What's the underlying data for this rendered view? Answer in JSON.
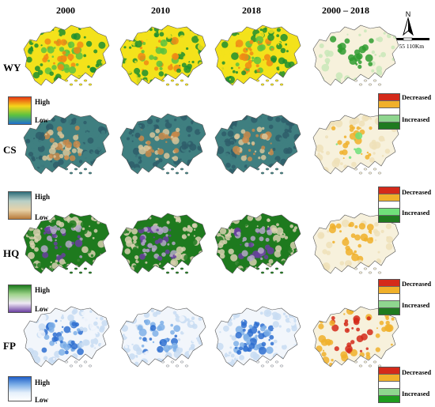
{
  "columns": [
    "2000",
    "2010",
    "2018",
    "2000 – 2018"
  ],
  "rows": [
    "WY",
    "CS",
    "HQ",
    "FP"
  ],
  "legends": {
    "wy": {
      "high": "High",
      "low": "Low"
    },
    "cs": {
      "high": "High",
      "low": "Low"
    },
    "hq": {
      "high": "High",
      "low": "Low"
    },
    "fp": {
      "high": "High",
      "low": "Low"
    }
  },
  "change_legend": {
    "decreased": "Decreased",
    "increased": "Increased"
  },
  "north_label": "N",
  "scale_labels": "0  55 110Km",
  "colors": {
    "wy": [
      "#f3e21b",
      "#f08a15",
      "#5cc23f",
      "#1f8f2f"
    ],
    "cs": [
      "#3f7f80",
      "#c98a4a",
      "#d8c59a",
      "#2e5d6a"
    ],
    "hq": [
      "#1e7a1e",
      "#b4a8c8",
      "#6a3fa0",
      "#d8d0b0"
    ],
    "fp": [
      "#f2f6fb",
      "#7fb0e8",
      "#2e6fd0",
      "#c8dcf2"
    ],
    "change_bg": "#f7f1dc",
    "change_dec": "#d42a1a",
    "change_mid": "#f0b02a",
    "change_inc": "#2f9c2f"
  }
}
